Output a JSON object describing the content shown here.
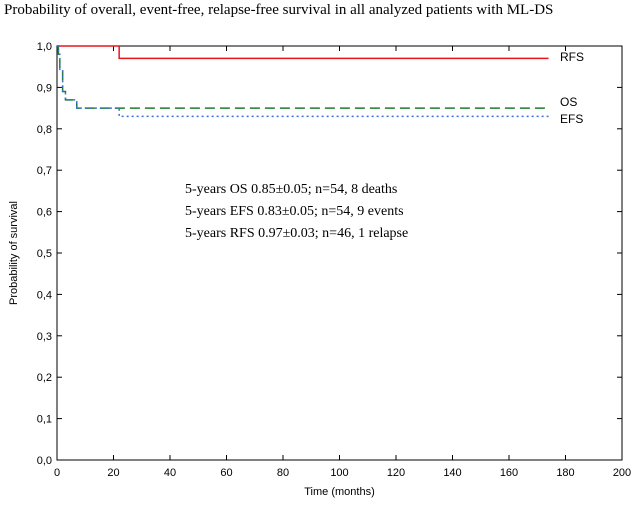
{
  "chart_data": {
    "type": "line",
    "title": "Probability of overall, event-free, relapse-free survival in all analyzed patients with ML-DS",
    "xlabel": "Time (months)",
    "ylabel": "Probability of survival",
    "xlim": [
      0,
      200
    ],
    "ylim": [
      0,
      1
    ],
    "x_ticks": [
      "0",
      "20",
      "40",
      "60",
      "80",
      "100",
      "120",
      "140",
      "160",
      "180",
      "200"
    ],
    "y_ticks": [
      "0,0",
      "0,1",
      "0,2",
      "0,3",
      "0,4",
      "0,5",
      "0,6",
      "0,7",
      "0,8",
      "0,9",
      "1,0"
    ],
    "grid": false,
    "step": true,
    "series": [
      {
        "name": "RFS",
        "color": "#e8161b",
        "dash": "solid",
        "x": [
          0,
          22,
          174
        ],
        "y": [
          1.0,
          0.97,
          0.97
        ]
      },
      {
        "name": "OS",
        "color": "#1f7d2c",
        "dash": "long-dash",
        "x": [
          0,
          0.5,
          1,
          2,
          3,
          7,
          174
        ],
        "y": [
          1.0,
          0.98,
          0.94,
          0.89,
          0.87,
          0.85,
          0.85
        ]
      },
      {
        "name": "EFS",
        "color": "#3a6fd8",
        "dash": "dotted",
        "x": [
          0,
          0.5,
          1,
          2,
          3,
          7,
          22,
          174
        ],
        "y": [
          1.0,
          0.98,
          0.94,
          0.89,
          0.87,
          0.85,
          0.83,
          0.83
        ]
      }
    ],
    "annotations": [
      "5-years OS 0.85±0.05; n=54, 8 deaths",
      "5-years EFS 0.83±0.05; n=54, 9 events",
      "5-years RFS 0.97±0.03; n=46, 1 relapse"
    ]
  }
}
